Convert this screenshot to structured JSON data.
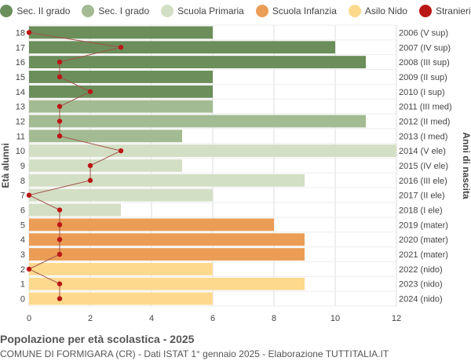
{
  "legend": [
    {
      "label": "Sec. II grado",
      "color": "#6b8e5a"
    },
    {
      "label": "Sec. I grado",
      "color": "#a3bb92"
    },
    {
      "label": "Scuola Primaria",
      "color": "#d3dfc4"
    },
    {
      "label": "Scuola Infanzia",
      "color": "#eb9d55"
    },
    {
      "label": "Asilo Nido",
      "color": "#fdd98e"
    },
    {
      "label": "Stranieri",
      "color": "#bb1616"
    }
  ],
  "footer": {
    "title": "Popolazione per età scolastica - 2025",
    "subtitle": "COMUNE DI FORMIGARA (CR) - Dati ISTAT 1° gennaio 2025 - Elaborazione TUTTITALIA.IT"
  },
  "chart_data": {
    "type": "bar",
    "orientation": "horizontal",
    "ylabel": "Età alunni",
    "ylabel_right": "Anni di nascita",
    "xlim": [
      0,
      12
    ],
    "xticks": [
      0,
      2,
      4,
      6,
      8,
      10,
      12
    ],
    "grid": true,
    "legend_position": "top",
    "rows": [
      {
        "age": "18",
        "year": "2006 (V sup)",
        "value": 6,
        "stranieri": 0,
        "group": "Sec. II grado"
      },
      {
        "age": "17",
        "year": "2007 (IV sup)",
        "value": 10,
        "stranieri": 3,
        "group": "Sec. II grado"
      },
      {
        "age": "16",
        "year": "2008 (III sup)",
        "value": 11,
        "stranieri": 1,
        "group": "Sec. II grado"
      },
      {
        "age": "15",
        "year": "2009 (II sup)",
        "value": 6,
        "stranieri": 1,
        "group": "Sec. II grado"
      },
      {
        "age": "14",
        "year": "2010 (I sup)",
        "value": 6,
        "stranieri": 2,
        "group": "Sec. II grado"
      },
      {
        "age": "13",
        "year": "2011 (III med)",
        "value": 6,
        "stranieri": 1,
        "group": "Sec. I grado"
      },
      {
        "age": "12",
        "year": "2012 (II med)",
        "value": 11,
        "stranieri": 1,
        "group": "Sec. I grado"
      },
      {
        "age": "11",
        "year": "2013 (I med)",
        "value": 5,
        "stranieri": 1,
        "group": "Sec. I grado"
      },
      {
        "age": "10",
        "year": "2014 (V ele)",
        "value": 12,
        "stranieri": 3,
        "group": "Scuola Primaria"
      },
      {
        "age": "9",
        "year": "2015 (IV ele)",
        "value": 5,
        "stranieri": 2,
        "group": "Scuola Primaria"
      },
      {
        "age": "8",
        "year": "2016 (III ele)",
        "value": 9,
        "stranieri": 2,
        "group": "Scuola Primaria"
      },
      {
        "age": "7",
        "year": "2017 (II ele)",
        "value": 6,
        "stranieri": 0,
        "group": "Scuola Primaria"
      },
      {
        "age": "6",
        "year": "2018 (I ele)",
        "value": 3,
        "stranieri": 1,
        "group": "Scuola Primaria"
      },
      {
        "age": "5",
        "year": "2019 (mater)",
        "value": 8,
        "stranieri": 1,
        "group": "Scuola Infanzia"
      },
      {
        "age": "4",
        "year": "2020 (mater)",
        "value": 9,
        "stranieri": 1,
        "group": "Scuola Infanzia"
      },
      {
        "age": "3",
        "year": "2021 (mater)",
        "value": 9,
        "stranieri": 1,
        "group": "Scuola Infanzia"
      },
      {
        "age": "2",
        "year": "2022 (nido)",
        "value": 6,
        "stranieri": 0,
        "group": "Asilo Nido"
      },
      {
        "age": "1",
        "year": "2023 (nido)",
        "value": 9,
        "stranieri": 1,
        "group": "Asilo Nido"
      },
      {
        "age": "0",
        "year": "2024 (nido)",
        "value": 6,
        "stranieri": 1,
        "group": "Asilo Nido"
      }
    ]
  }
}
